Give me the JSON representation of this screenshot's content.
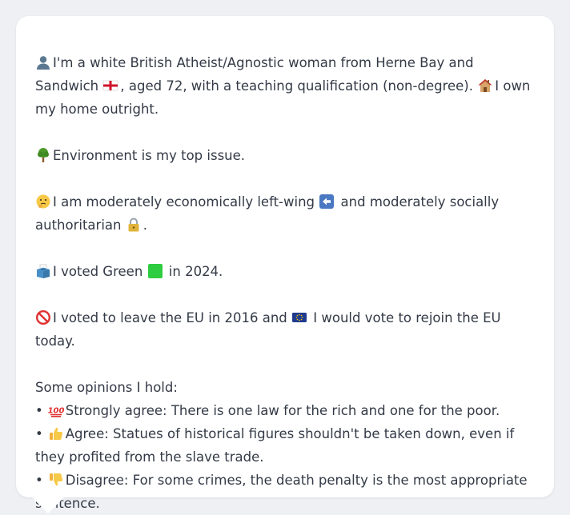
{
  "profile": {
    "intro": {
      "part1": "I'm a white British Atheist/Agnostic woman from Herne Bay and Sandwich",
      "part2": ", aged 72, with a teaching qualification (non-degree).",
      "part3": "I own my home outright."
    },
    "environment": "Environment is my top issue.",
    "economics": {
      "part1": "I am moderately economically left-wing",
      "part2": "and moderately socially authoritarian",
      "part3": "."
    },
    "vote": {
      "part1": "I voted Green",
      "part2": "in 2024."
    },
    "eu": {
      "part1": "I voted to leave the EU in 2016 and",
      "part2": "I would vote to rejoin the EU today."
    },
    "opinions_heading": "Some opinions I hold:",
    "bullet_char": "•",
    "opinions": [
      {
        "stance": "Strongly agree:",
        "text": "There is one law for the rich and one for the poor."
      },
      {
        "stance": "Agree:",
        "text": "Statues of historical figures shouldn't be taken down, even if they profited from the slave trade."
      },
      {
        "stance": "Disagree:",
        "text": "For some crimes, the death penalty is the most appropriate sentence."
      }
    ],
    "icons": {
      "intro": "person-icon",
      "origin": "england-flag-icon",
      "home": "house-icon",
      "environment": "tree-icon",
      "economics": "thinking-face-icon",
      "left": "left-arrow-icon",
      "authoritarian": "padlock-icon",
      "vote": "ballot-box-icon",
      "party": "green-square-icon",
      "leave": "prohibited-icon",
      "rejoin": "eu-flag-icon",
      "strongly_agree": "hundred-points-icon",
      "agree": "thumbs-up-icon",
      "disagree": "thumbs-down-icon"
    },
    "colors": {
      "text": "#333a46",
      "background": "#eef0f4",
      "card": "#ffffff",
      "green": "#2ecc40",
      "eu_blue": "#1f3b8f"
    }
  }
}
